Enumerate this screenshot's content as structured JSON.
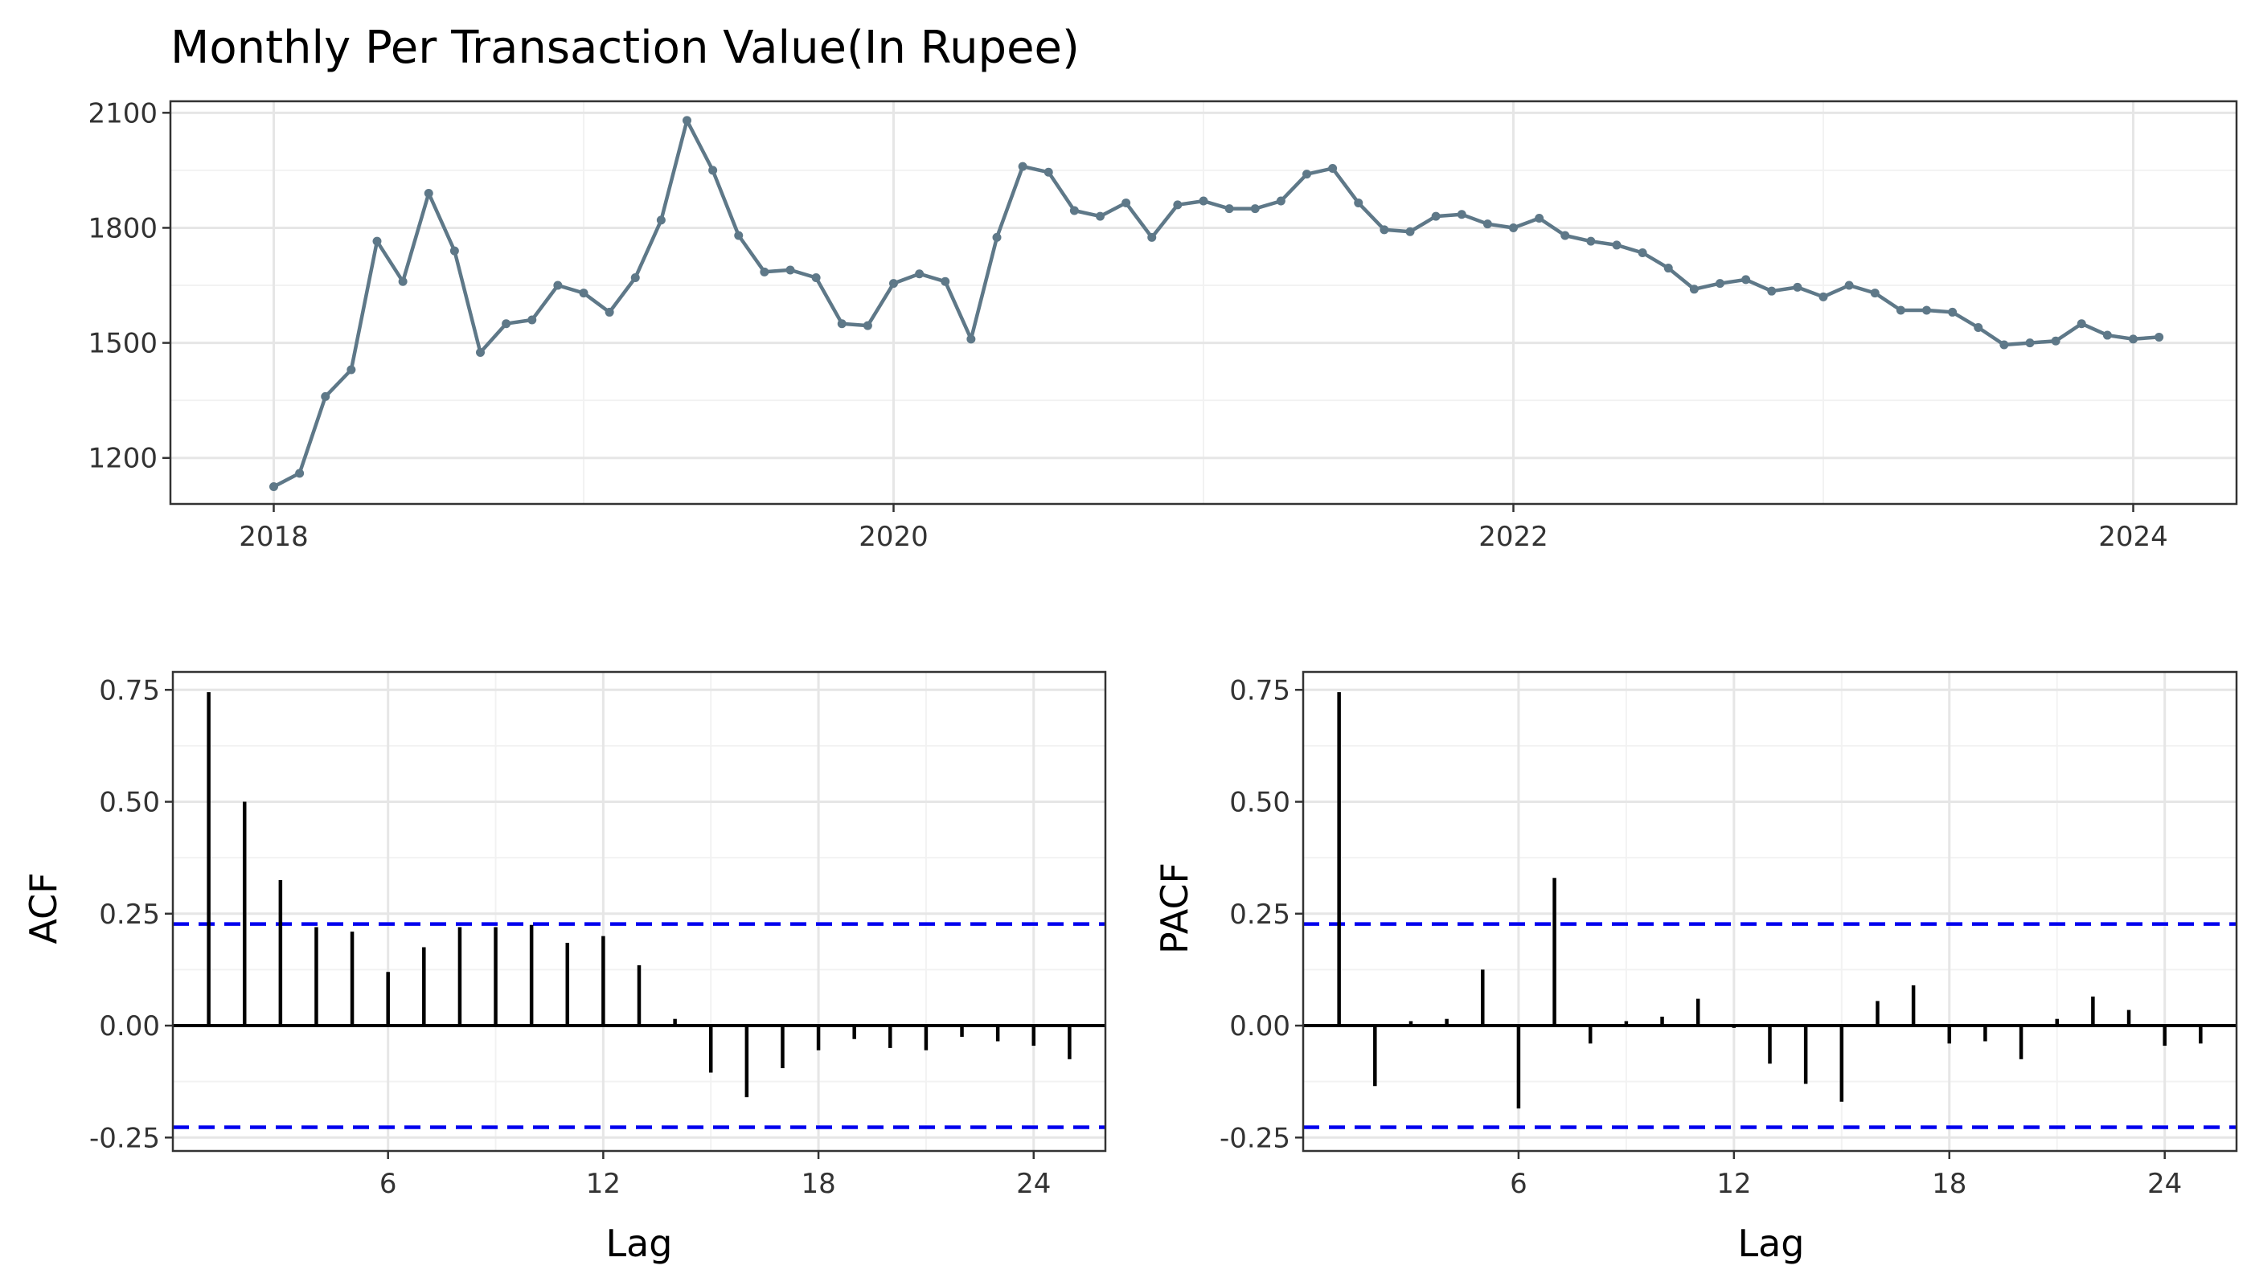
{
  "chart_data": [
    {
      "type": "line",
      "title": "Monthly Per Transaction Value(In Rupee)",
      "xlabel": "",
      "ylabel": "",
      "x_ticks": [
        "2018",
        "2020",
        "2022",
        "2024"
      ],
      "y_ticks": [
        1200,
        1500,
        1800,
        2100
      ],
      "xlim": [
        "2017-09",
        "2024-05"
      ],
      "ylim": [
        1080,
        2130
      ],
      "x_start": "2018-01",
      "grid": true,
      "color": "#5e7888",
      "series": [
        {
          "values": [
            1125,
            1160,
            1360,
            1430,
            1765,
            1660,
            1890,
            1740,
            1475,
            1550,
            1560,
            1650,
            1630,
            1580,
            1670,
            1820,
            2080,
            1950,
            1780,
            1685,
            1690,
            1670,
            1550,
            1545,
            1655,
            1680,
            1660,
            1510,
            1775,
            1960,
            1945,
            1845,
            1830,
            1865,
            1775,
            1860,
            1870,
            1850,
            1850,
            1870,
            1940,
            1955,
            1865,
            1795,
            1790,
            1830,
            1835,
            1810,
            1800,
            1825,
            1780,
            1765,
            1755,
            1735,
            1695,
            1640,
            1655,
            1665,
            1635,
            1645,
            1620,
            1650,
            1630,
            1585,
            1585,
            1580,
            1540,
            1495,
            1500,
            1505,
            1550,
            1520,
            1510,
            1515
          ]
        }
      ]
    },
    {
      "type": "bar",
      "xlabel": "Lag",
      "ylabel": "ACF",
      "x_ticks": [
        6,
        12,
        18,
        24
      ],
      "y_ticks": [
        -0.25,
        0.0,
        0.25,
        0.5,
        0.75
      ],
      "y_tick_labels": [
        "-0.25",
        "0.00",
        "0.25",
        "0.50",
        "0.75"
      ],
      "xlim": [
        0.0,
        26.0
      ],
      "ylim": [
        -0.28,
        0.79
      ],
      "lags": [
        1,
        2,
        3,
        4,
        5,
        6,
        7,
        8,
        9,
        10,
        11,
        12,
        13,
        14,
        15,
        16,
        17,
        18,
        19,
        20,
        21,
        22,
        23,
        24,
        25
      ],
      "values": [
        0.745,
        0.5,
        0.325,
        0.22,
        0.21,
        0.12,
        0.175,
        0.22,
        0.22,
        0.225,
        0.185,
        0.2,
        0.135,
        0.015,
        -0.105,
        -0.16,
        -0.095,
        -0.055,
        -0.03,
        -0.05,
        -0.055,
        -0.025,
        -0.035,
        -0.045,
        -0.075
      ],
      "confidence_bound": 0.227,
      "confidence_color": "#0000ee",
      "grid": true
    },
    {
      "type": "bar",
      "xlabel": "Lag",
      "ylabel": "PACF",
      "x_ticks": [
        6,
        12,
        18,
        24
      ],
      "y_ticks": [
        -0.25,
        0.0,
        0.25,
        0.5,
        0.75
      ],
      "y_tick_labels": [
        "-0.25",
        "0.00",
        "0.25",
        "0.50",
        "0.75"
      ],
      "xlim": [
        0.0,
        26.0
      ],
      "ylim": [
        -0.28,
        0.79
      ],
      "lags": [
        1,
        2,
        3,
        4,
        5,
        6,
        7,
        8,
        9,
        10,
        11,
        12,
        13,
        14,
        15,
        16,
        17,
        18,
        19,
        20,
        21,
        22,
        23,
        24,
        25
      ],
      "values": [
        0.745,
        -0.135,
        0.01,
        0.015,
        0.125,
        -0.185,
        0.33,
        -0.04,
        0.01,
        0.02,
        0.06,
        -0.005,
        -0.085,
        -0.13,
        -0.17,
        0.055,
        0.09,
        -0.04,
        -0.035,
        -0.075,
        0.015,
        0.065,
        0.035,
        -0.045,
        -0.04
      ],
      "confidence_bound": 0.227,
      "confidence_color": "#0000ee",
      "grid": true
    }
  ]
}
